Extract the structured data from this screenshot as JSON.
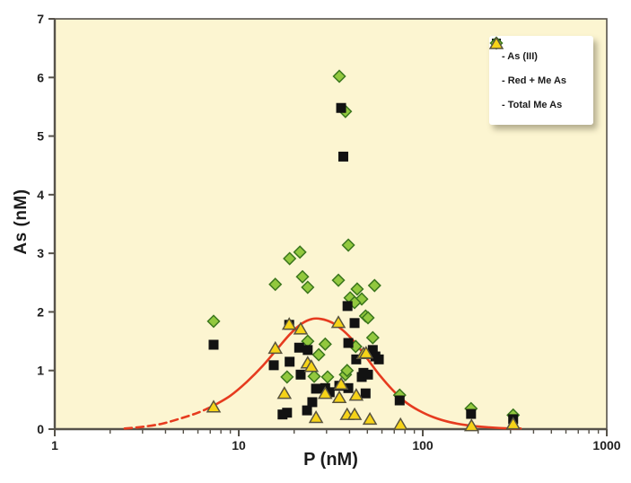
{
  "legend": {
    "items": [
      {
        "label": "- As (III)"
      },
      {
        "label": "- Red + Me As"
      },
      {
        "label": "- Total Me As"
      }
    ]
  },
  "chart_data": {
    "type": "scatter",
    "title": "",
    "xlabel": "P (nM)",
    "ylabel": "As (nM)",
    "x_scale": "log",
    "xlim": [
      1,
      1000
    ],
    "ylim": [
      0,
      7
    ],
    "x_ticks": [
      1,
      10,
      100,
      1000
    ],
    "x_tick_labels": [
      "1",
      "10",
      "100",
      "1000"
    ],
    "y_ticks": [
      0,
      1,
      2,
      3,
      4,
      5,
      6,
      7
    ],
    "y_tick_labels": [
      "0",
      "1",
      "2",
      "3",
      "4",
      "5",
      "6",
      "7"
    ],
    "grid": false,
    "legend_position": "top-right",
    "plot_bg_color": "#fcf5d1",
    "axis_color": "#56524a",
    "series": [
      {
        "name": "Red + Me As",
        "marker": "diamond",
        "fill": "#92c83e",
        "stroke": "#3b761d",
        "points": [
          [
            7.3,
            1.84
          ],
          [
            35.2,
            6.02
          ],
          [
            38,
            5.42
          ],
          [
            18.9,
            2.91
          ],
          [
            21.5,
            3.02
          ],
          [
            39.4,
            3.14
          ],
          [
            15.8,
            2.47
          ],
          [
            22.2,
            2.6
          ],
          [
            23.7,
            2.42
          ],
          [
            34.8,
            2.54
          ],
          [
            40.3,
            2.24
          ],
          [
            44,
            2.39
          ],
          [
            54.7,
            2.45
          ],
          [
            46.6,
            2.22
          ],
          [
            42.6,
            2.16
          ],
          [
            48.9,
            1.93
          ],
          [
            50.4,
            1.9
          ],
          [
            23.7,
            1.5
          ],
          [
            29.5,
            1.45
          ],
          [
            27.2,
            1.27
          ],
          [
            53.5,
            1.56
          ],
          [
            43.2,
            1.41
          ],
          [
            18.3,
            0.89
          ],
          [
            25.7,
            0.9
          ],
          [
            30.4,
            0.89
          ],
          [
            38,
            0.93
          ],
          [
            38.8,
            1.0
          ],
          [
            74.9,
            0.58
          ],
          [
            183,
            0.35
          ],
          [
            310,
            0.24
          ]
        ]
      },
      {
        "name": "As (III)",
        "marker": "square",
        "fill": "#121212",
        "stroke": "#121212",
        "points": [
          [
            7.3,
            1.44
          ],
          [
            36,
            5.48
          ],
          [
            37,
            4.65
          ],
          [
            18.8,
            1.78
          ],
          [
            15.5,
            1.09
          ],
          [
            18.9,
            1.15
          ],
          [
            21.3,
            1.39
          ],
          [
            23.7,
            1.35
          ],
          [
            39,
            2.1
          ],
          [
            42.6,
            1.81
          ],
          [
            39.4,
            1.47
          ],
          [
            26.3,
            0.69
          ],
          [
            29.5,
            0.7
          ],
          [
            31.2,
            0.63
          ],
          [
            35.2,
            0.74
          ],
          [
            39.4,
            0.7
          ],
          [
            46.6,
            0.89
          ],
          [
            48.9,
            0.61
          ],
          [
            25.1,
            0.46
          ],
          [
            23.5,
            0.32
          ],
          [
            18.3,
            0.28
          ],
          [
            17.3,
            0.25
          ],
          [
            53.5,
            1.35
          ],
          [
            55.3,
            1.24
          ],
          [
            43.5,
            1.19
          ],
          [
            47.6,
            0.96
          ],
          [
            50.4,
            0.93
          ],
          [
            57.7,
            1.19
          ],
          [
            74.9,
            0.49
          ],
          [
            183,
            0.26
          ],
          [
            310,
            0.17
          ],
          [
            21.7,
            0.93
          ]
        ]
      },
      {
        "name": "Total Me As",
        "marker": "triangle",
        "fill": "#f6d318",
        "stroke": "#59543e",
        "points": [
          [
            7.3,
            0.38
          ],
          [
            18.8,
            1.79
          ],
          [
            21.7,
            1.71
          ],
          [
            34.8,
            1.82
          ],
          [
            15.8,
            1.38
          ],
          [
            23.7,
            1.13
          ],
          [
            24.8,
            1.07
          ],
          [
            17.7,
            0.61
          ],
          [
            29.5,
            0.61
          ],
          [
            36,
            0.77
          ],
          [
            35.2,
            0.54
          ],
          [
            43.5,
            0.58
          ],
          [
            47.6,
            1.29
          ],
          [
            49.2,
            1.3
          ],
          [
            26.3,
            0.2
          ],
          [
            38.8,
            0.25
          ],
          [
            42.6,
            0.25
          ],
          [
            51.6,
            0.17
          ],
          [
            75.7,
            0.08
          ],
          [
            184,
            0.06
          ],
          [
            310,
            0.09
          ]
        ]
      }
    ],
    "fit_curve": {
      "color": "#e63b1f",
      "dashed_points": [
        [
          2.4,
          0.01
        ],
        [
          3.0,
          0.04
        ],
        [
          3.8,
          0.09
        ],
        [
          4.8,
          0.18
        ],
        [
          6.0,
          0.28
        ],
        [
          7.3,
          0.4
        ]
      ],
      "solid_points": [
        [
          7.3,
          0.4
        ],
        [
          9,
          0.57
        ],
        [
          11,
          0.8
        ],
        [
          13.5,
          1.08
        ],
        [
          16,
          1.35
        ],
        [
          19,
          1.62
        ],
        [
          22,
          1.8
        ],
        [
          25,
          1.88
        ],
        [
          28,
          1.88
        ],
        [
          32,
          1.82
        ],
        [
          37,
          1.68
        ],
        [
          43,
          1.47
        ],
        [
          50,
          1.2
        ],
        [
          58,
          0.93
        ],
        [
          68,
          0.68
        ],
        [
          80,
          0.47
        ],
        [
          95,
          0.32
        ],
        [
          115,
          0.2
        ],
        [
          140,
          0.12
        ],
        [
          180,
          0.06
        ],
        [
          230,
          0.03
        ],
        [
          300,
          0.01
        ],
        [
          340,
          0.01
        ]
      ]
    }
  }
}
